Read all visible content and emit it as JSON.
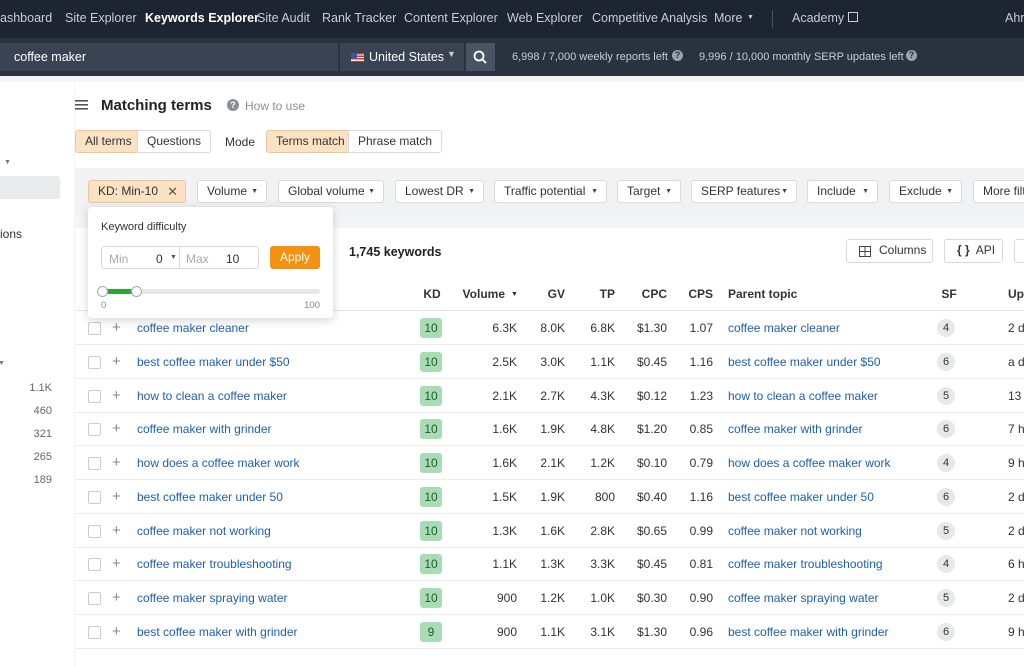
{
  "nav": {
    "items": [
      "Dashboard",
      "Site Explorer",
      "Keywords Explorer",
      "Site Audit",
      "Rank Tracker",
      "Content Explorer",
      "Web Explorer",
      "Competitive Analysis",
      "More",
      "Academy",
      "Ahre"
    ]
  },
  "search": {
    "query": "coffee maker",
    "country": "United States",
    "weekly": "6,998 / 7,000 weekly reports left",
    "monthly": "9,996 / 10,000 monthly SERP updates left"
  },
  "sidebar": {
    "label": "ions",
    "counts": [
      "1.1K",
      "460",
      "321",
      "265",
      "189"
    ]
  },
  "header": {
    "title": "Matching terms",
    "help": "How to use"
  },
  "tabs": {
    "all": "All terms",
    "questions": "Questions",
    "mode": "Mode",
    "terms": "Terms match",
    "phrase": "Phrase match"
  },
  "filters": [
    "KD: Min-10",
    "Volume",
    "Global volume",
    "Lowest DR",
    "Traffic potential",
    "Target",
    "SERP features",
    "Include",
    "Exclude",
    "More filt"
  ],
  "popup": {
    "title": "Keyword difficulty",
    "min_label": "Min",
    "min": "0",
    "max_label": "Max",
    "max": "10",
    "apply": "Apply",
    "scale_min": "0",
    "scale_max": "100"
  },
  "toolbar": {
    "count": "1,745 keywords",
    "columns": "Columns",
    "api": "API"
  },
  "table": {
    "header": [
      "KD",
      "Volume",
      "GV",
      "TP",
      "CPC",
      "CPS",
      "Parent topic",
      "SF",
      "Upd"
    ],
    "rows": [
      [
        "coffee maker cleaner",
        "10",
        "6.3K",
        "8.0K",
        "6.8K",
        "$1.30",
        "1.07",
        "coffee maker cleaner",
        "4",
        "2 d"
      ],
      [
        "best coffee maker under $50",
        "10",
        "2.5K",
        "3.0K",
        "1.1K",
        "$0.45",
        "1.16",
        "best coffee maker under $50",
        "6",
        "a d"
      ],
      [
        "how to clean a coffee maker",
        "10",
        "2.1K",
        "2.7K",
        "4.3K",
        "$0.12",
        "1.23",
        "how to clean a coffee maker",
        "5",
        "13"
      ],
      [
        "coffee maker with grinder",
        "10",
        "1.6K",
        "1.9K",
        "4.8K",
        "$1.20",
        "0.85",
        "coffee maker with grinder",
        "6",
        "7 h"
      ],
      [
        "how does a coffee maker work",
        "10",
        "1.6K",
        "2.1K",
        "1.2K",
        "$0.10",
        "0.79",
        "how does a coffee maker work",
        "4",
        "9 h"
      ],
      [
        "best coffee maker under 50",
        "10",
        "1.5K",
        "1.9K",
        "800",
        "$0.40",
        "1.16",
        "best coffee maker under 50",
        "6",
        "2 d"
      ],
      [
        "coffee maker not working",
        "10",
        "1.3K",
        "1.6K",
        "2.8K",
        "$0.65",
        "0.99",
        "coffee maker not working",
        "5",
        "2 d"
      ],
      [
        "coffee maker troubleshooting",
        "10",
        "1.1K",
        "1.3K",
        "3.3K",
        "$0.45",
        "0.81",
        "coffee maker troubleshooting",
        "4",
        "6 h"
      ],
      [
        "coffee maker spraying water",
        "10",
        "900",
        "1.2K",
        "1.0K",
        "$0.30",
        "0.90",
        "coffee maker spraying water",
        "5",
        "2 d"
      ],
      [
        "best coffee maker with grinder",
        "9",
        "900",
        "1.1K",
        "3.1K",
        "$1.30",
        "0.96",
        "best coffee maker with grinder",
        "6",
        "9 h"
      ]
    ]
  }
}
